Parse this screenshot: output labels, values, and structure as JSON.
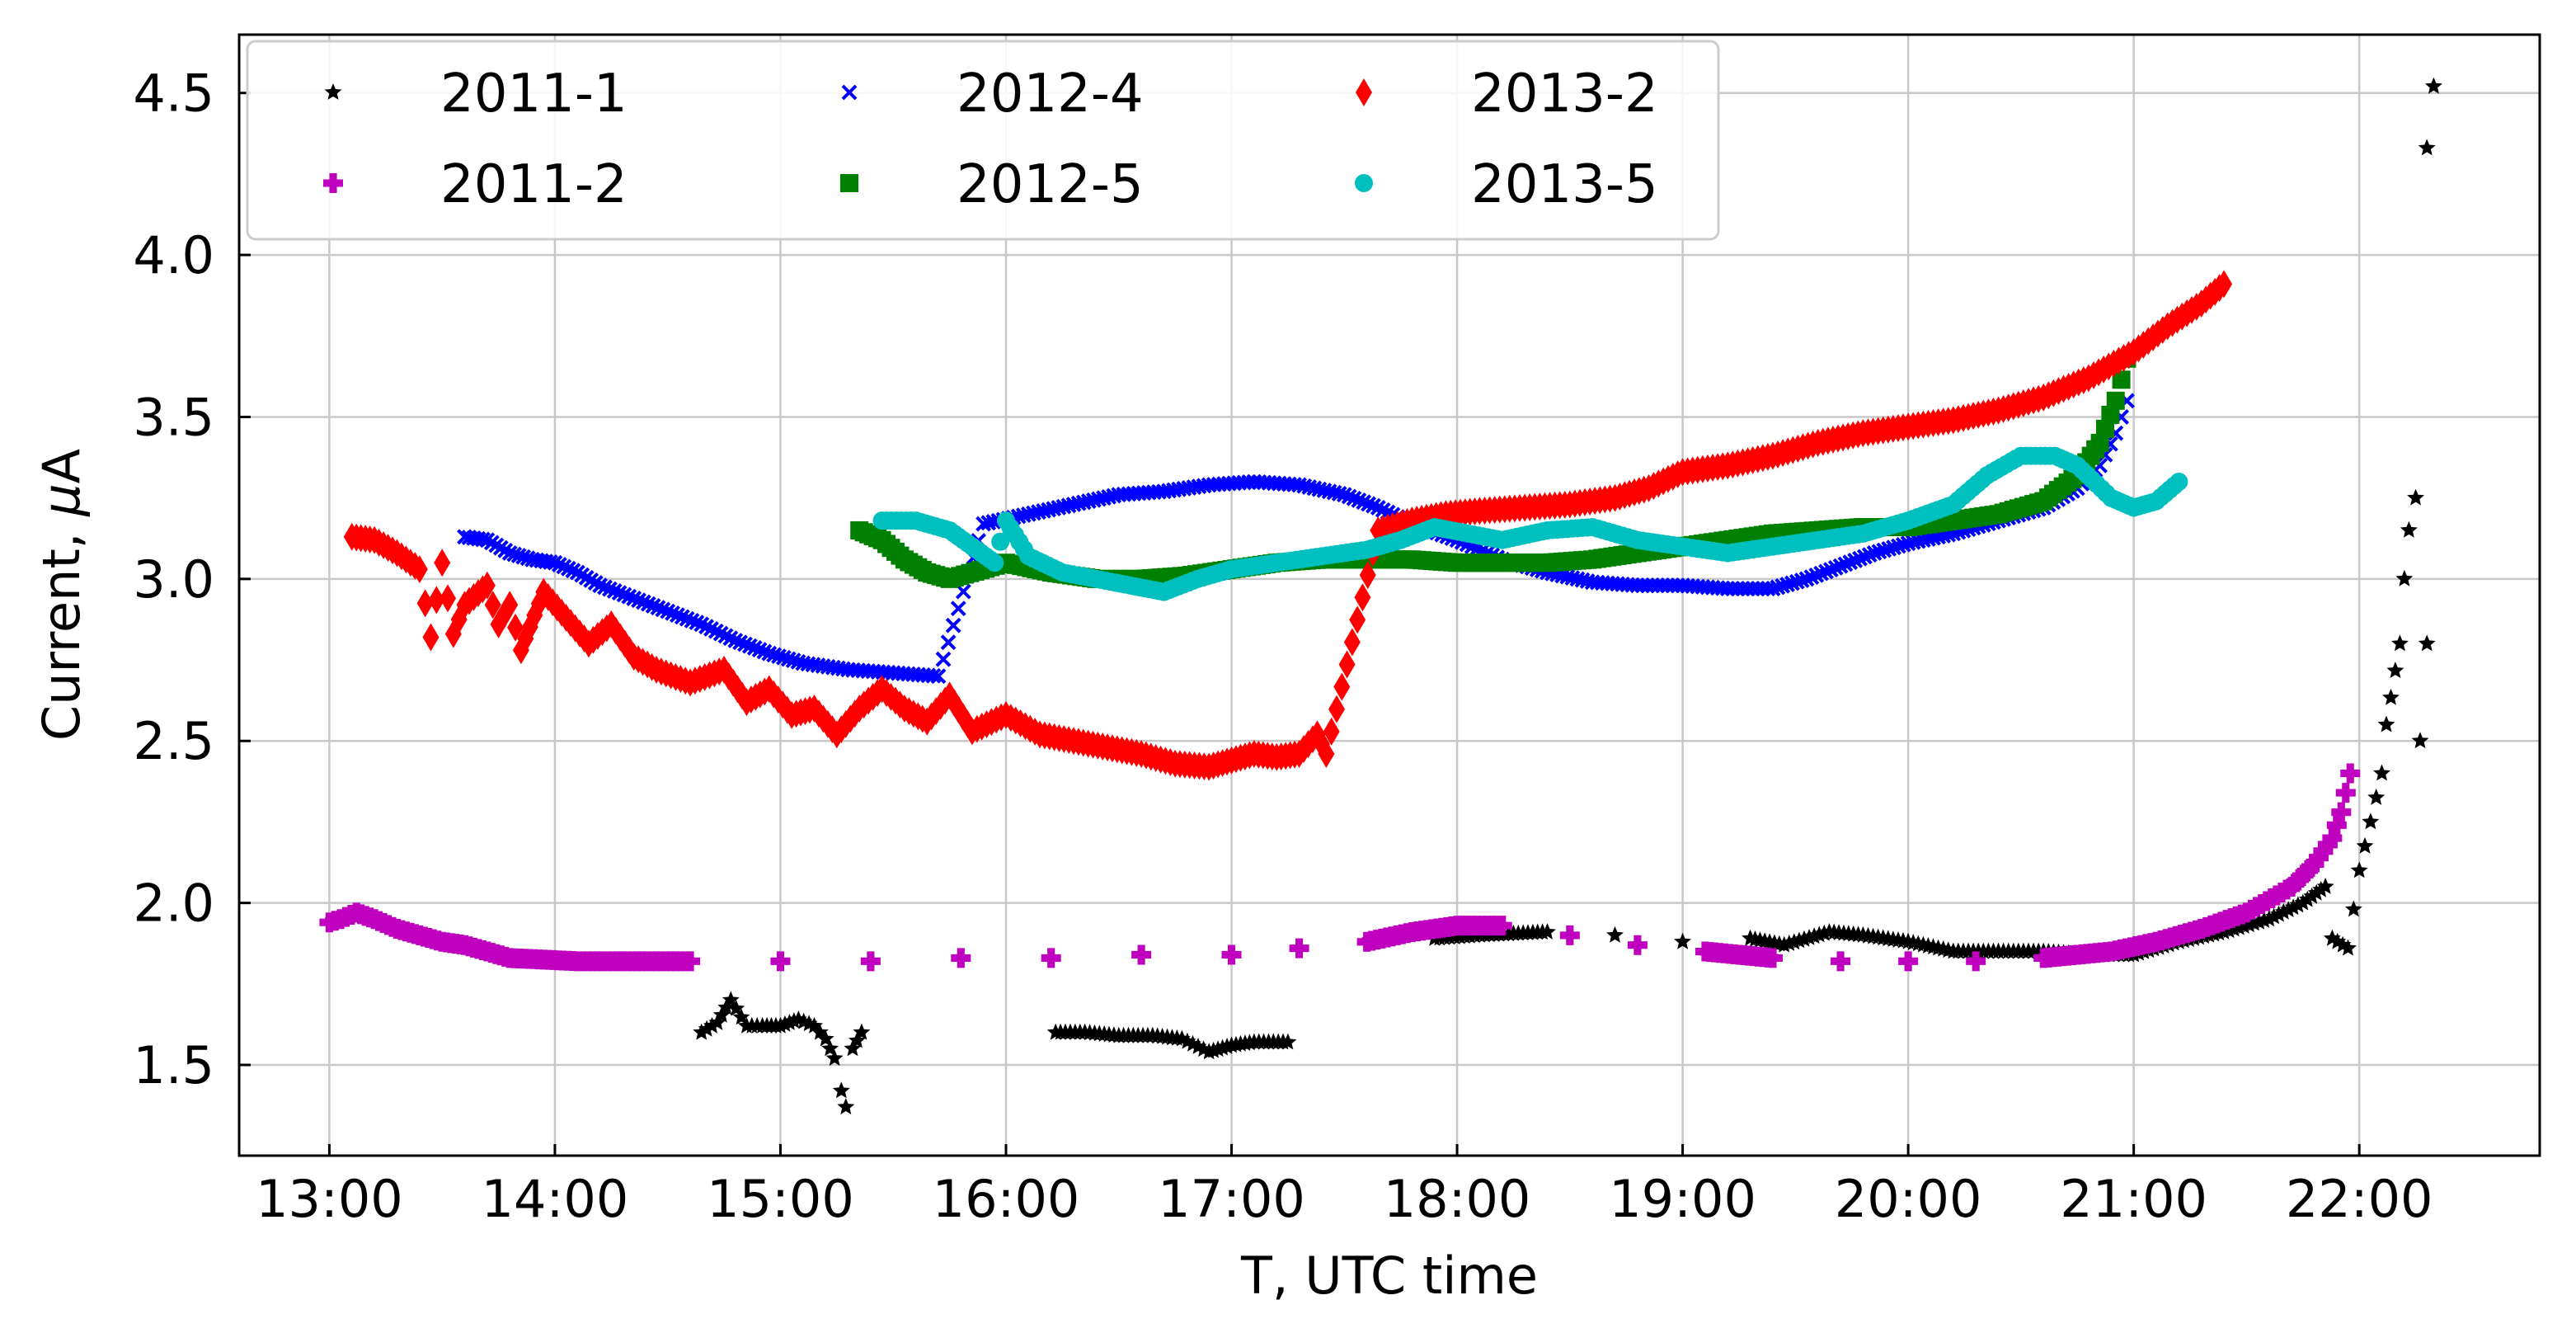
{
  "chart_data": {
    "type": "scatter",
    "title": "",
    "xlabel": "T, UTC time",
    "ylabel_main": "Current, ",
    "ylabel_unit": "μA",
    "xlim": [
      12.6,
      22.8
    ],
    "ylim": [
      1.22,
      4.68
    ],
    "x_ticks": [
      13,
      14,
      15,
      16,
      17,
      18,
      19,
      20,
      21,
      22
    ],
    "x_tick_labels": [
      "13:00",
      "14:00",
      "15:00",
      "16:00",
      "17:00",
      "18:00",
      "19:00",
      "20:00",
      "21:00",
      "22:00"
    ],
    "y_ticks": [
      1.5,
      2.0,
      2.5,
      3.0,
      3.5,
      4.0,
      4.5
    ],
    "y_tick_labels": [
      "1.5",
      "2.0",
      "2.5",
      "3.0",
      "3.5",
      "4.0",
      "4.5"
    ],
    "grid": true,
    "legend_position": "top-left",
    "legend_columns": 3,
    "series": [
      {
        "name": "2011-1",
        "color": "#000000",
        "marker": "star",
        "points": [
          [
            14.65,
            1.6
          ],
          [
            14.72,
            1.63
          ],
          [
            14.78,
            1.7
          ],
          [
            14.85,
            1.62
          ],
          [
            14.92,
            1.62
          ],
          [
            15.0,
            1.62
          ],
          [
            15.08,
            1.64
          ],
          [
            15.15,
            1.62
          ],
          [
            15.2,
            1.58
          ],
          [
            15.24,
            1.52
          ],
          [
            15.27,
            1.42
          ],
          [
            15.29,
            1.37
          ],
          [
            15.32,
            1.55
          ],
          [
            15.36,
            1.6
          ],
          [
            16.22,
            1.6
          ],
          [
            16.35,
            1.6
          ],
          [
            16.5,
            1.59
          ],
          [
            16.65,
            1.59
          ],
          [
            16.78,
            1.58
          ],
          [
            16.9,
            1.54
          ],
          [
            17.0,
            1.56
          ],
          [
            17.1,
            1.57
          ],
          [
            17.25,
            1.57
          ],
          [
            17.9,
            1.89
          ],
          [
            18.1,
            1.9
          ],
          [
            18.4,
            1.91
          ],
          [
            18.7,
            1.9
          ],
          [
            19.0,
            1.88
          ],
          [
            19.3,
            1.89
          ],
          [
            19.45,
            1.87
          ],
          [
            19.65,
            1.91
          ],
          [
            19.8,
            1.9
          ],
          [
            20.0,
            1.88
          ],
          [
            20.2,
            1.85
          ],
          [
            20.4,
            1.85
          ],
          [
            20.6,
            1.85
          ],
          [
            20.8,
            1.84
          ],
          [
            21.0,
            1.84
          ],
          [
            21.2,
            1.88
          ],
          [
            21.4,
            1.91
          ],
          [
            21.6,
            1.95
          ],
          [
            21.75,
            2.0
          ],
          [
            21.85,
            2.05
          ],
          [
            21.88,
            1.89
          ],
          [
            21.95,
            1.86
          ],
          [
            22.0,
            2.1
          ],
          [
            22.05,
            2.25
          ],
          [
            22.1,
            2.4
          ],
          [
            22.12,
            2.55
          ],
          [
            22.18,
            2.8
          ],
          [
            22.2,
            3.0
          ],
          [
            22.22,
            3.15
          ],
          [
            22.25,
            3.25
          ],
          [
            22.27,
            2.5
          ],
          [
            22.3,
            2.8
          ],
          [
            22.3,
            4.33
          ],
          [
            22.33,
            4.52
          ]
        ]
      },
      {
        "name": "2011-2",
        "color": "#bf00bf",
        "marker": "plus",
        "points": [
          [
            13.0,
            1.94
          ],
          [
            13.05,
            1.95
          ],
          [
            13.12,
            1.97
          ],
          [
            13.2,
            1.95
          ],
          [
            13.3,
            1.92
          ],
          [
            13.4,
            1.9
          ],
          [
            13.5,
            1.88
          ],
          [
            13.6,
            1.87
          ],
          [
            13.7,
            1.85
          ],
          [
            13.8,
            1.83
          ],
          [
            14.1,
            1.82
          ],
          [
            14.3,
            1.82
          ],
          [
            14.6,
            1.82
          ],
          [
            15.0,
            1.82
          ],
          [
            15.4,
            1.82
          ],
          [
            15.8,
            1.83
          ],
          [
            16.2,
            1.83
          ],
          [
            16.6,
            1.84
          ],
          [
            17.0,
            1.84
          ],
          [
            17.3,
            1.86
          ],
          [
            17.6,
            1.88
          ],
          [
            17.8,
            1.91
          ],
          [
            18.0,
            1.93
          ],
          [
            18.2,
            1.93
          ],
          [
            18.5,
            1.9
          ],
          [
            18.8,
            1.87
          ],
          [
            19.1,
            1.85
          ],
          [
            19.4,
            1.83
          ],
          [
            19.7,
            1.82
          ],
          [
            20.0,
            1.82
          ],
          [
            20.3,
            1.82
          ],
          [
            20.6,
            1.83
          ],
          [
            20.9,
            1.85
          ],
          [
            21.1,
            1.88
          ],
          [
            21.3,
            1.92
          ],
          [
            21.5,
            1.97
          ],
          [
            21.7,
            2.05
          ],
          [
            21.8,
            2.12
          ],
          [
            21.88,
            2.2
          ],
          [
            21.92,
            2.28
          ],
          [
            21.96,
            2.4
          ]
        ]
      },
      {
        "name": "2012-4",
        "color": "#0000ff",
        "marker": "x",
        "points": [
          [
            13.6,
            3.13
          ],
          [
            13.7,
            3.12
          ],
          [
            13.8,
            3.08
          ],
          [
            13.9,
            3.06
          ],
          [
            14.0,
            3.05
          ],
          [
            14.1,
            3.02
          ],
          [
            14.2,
            2.98
          ],
          [
            14.35,
            2.94
          ],
          [
            14.5,
            2.9
          ],
          [
            14.65,
            2.86
          ],
          [
            14.8,
            2.81
          ],
          [
            14.95,
            2.77
          ],
          [
            15.1,
            2.74
          ],
          [
            15.3,
            2.72
          ],
          [
            15.5,
            2.71
          ],
          [
            15.7,
            2.7
          ],
          [
            15.9,
            3.17
          ],
          [
            16.1,
            3.2
          ],
          [
            16.3,
            3.23
          ],
          [
            16.5,
            3.26
          ],
          [
            16.7,
            3.27
          ],
          [
            16.9,
            3.29
          ],
          [
            17.1,
            3.3
          ],
          [
            17.3,
            3.29
          ],
          [
            17.5,
            3.26
          ],
          [
            17.65,
            3.22
          ],
          [
            17.8,
            3.17
          ],
          [
            18.0,
            3.12
          ],
          [
            18.2,
            3.06
          ],
          [
            18.4,
            3.02
          ],
          [
            18.6,
            2.99
          ],
          [
            18.8,
            2.98
          ],
          [
            19.0,
            2.98
          ],
          [
            19.2,
            2.97
          ],
          [
            19.4,
            2.97
          ],
          [
            19.55,
            3.0
          ],
          [
            19.7,
            3.04
          ],
          [
            19.85,
            3.08
          ],
          [
            20.0,
            3.11
          ],
          [
            20.2,
            3.14
          ],
          [
            20.4,
            3.18
          ],
          [
            20.6,
            3.22
          ],
          [
            20.75,
            3.28
          ],
          [
            20.85,
            3.35
          ],
          [
            20.92,
            3.45
          ],
          [
            20.97,
            3.55
          ]
        ]
      },
      {
        "name": "2012-5",
        "color": "#008000",
        "marker": "square",
        "points": [
          [
            15.35,
            3.15
          ],
          [
            15.45,
            3.12
          ],
          [
            15.55,
            3.06
          ],
          [
            15.65,
            3.02
          ],
          [
            15.75,
            3.0
          ],
          [
            16.0,
            3.05
          ],
          [
            16.2,
            3.02
          ],
          [
            16.4,
            3.0
          ],
          [
            16.6,
            3.0
          ],
          [
            16.8,
            3.01
          ],
          [
            17.0,
            3.03
          ],
          [
            17.2,
            3.05
          ],
          [
            17.4,
            3.06
          ],
          [
            17.6,
            3.06
          ],
          [
            17.8,
            3.06
          ],
          [
            18.0,
            3.05
          ],
          [
            18.2,
            3.05
          ],
          [
            18.4,
            3.05
          ],
          [
            18.6,
            3.06
          ],
          [
            18.8,
            3.08
          ],
          [
            19.0,
            3.1
          ],
          [
            19.2,
            3.12
          ],
          [
            19.4,
            3.14
          ],
          [
            19.6,
            3.15
          ],
          [
            19.8,
            3.16
          ],
          [
            20.0,
            3.16
          ],
          [
            20.2,
            3.18
          ],
          [
            20.4,
            3.2
          ],
          [
            20.6,
            3.24
          ],
          [
            20.75,
            3.32
          ],
          [
            20.85,
            3.42
          ],
          [
            20.92,
            3.55
          ],
          [
            20.97,
            3.68
          ]
        ]
      },
      {
        "name": "2013-2",
        "color": "#ff0000",
        "marker": "diamond",
        "points": [
          [
            13.1,
            3.13
          ],
          [
            13.2,
            3.12
          ],
          [
            13.3,
            3.08
          ],
          [
            13.4,
            3.03
          ],
          [
            13.45,
            2.82
          ],
          [
            13.5,
            3.05
          ],
          [
            13.55,
            2.83
          ],
          [
            13.6,
            2.92
          ],
          [
            13.7,
            2.98
          ],
          [
            13.75,
            2.86
          ],
          [
            13.8,
            2.92
          ],
          [
            13.85,
            2.78
          ],
          [
            13.95,
            2.96
          ],
          [
            14.05,
            2.88
          ],
          [
            14.15,
            2.8
          ],
          [
            14.25,
            2.86
          ],
          [
            14.35,
            2.76
          ],
          [
            14.45,
            2.72
          ],
          [
            14.6,
            2.68
          ],
          [
            14.75,
            2.72
          ],
          [
            14.85,
            2.62
          ],
          [
            14.95,
            2.66
          ],
          [
            15.05,
            2.58
          ],
          [
            15.15,
            2.6
          ],
          [
            15.25,
            2.52
          ],
          [
            15.35,
            2.6
          ],
          [
            15.45,
            2.66
          ],
          [
            15.55,
            2.6
          ],
          [
            15.65,
            2.56
          ],
          [
            15.75,
            2.64
          ],
          [
            15.85,
            2.53
          ],
          [
            16.0,
            2.58
          ],
          [
            16.15,
            2.52
          ],
          [
            16.3,
            2.5
          ],
          [
            16.45,
            2.48
          ],
          [
            16.6,
            2.46
          ],
          [
            16.75,
            2.43
          ],
          [
            16.9,
            2.42
          ],
          [
            17.0,
            2.44
          ],
          [
            17.1,
            2.46
          ],
          [
            17.2,
            2.45
          ],
          [
            17.3,
            2.46
          ],
          [
            17.38,
            2.52
          ],
          [
            17.42,
            2.46
          ],
          [
            17.65,
            3.15
          ],
          [
            17.8,
            3.18
          ],
          [
            17.95,
            3.2
          ],
          [
            18.1,
            3.21
          ],
          [
            18.3,
            3.22
          ],
          [
            18.5,
            3.23
          ],
          [
            18.7,
            3.25
          ],
          [
            18.85,
            3.28
          ],
          [
            19.0,
            3.33
          ],
          [
            19.2,
            3.35
          ],
          [
            19.4,
            3.38
          ],
          [
            19.6,
            3.42
          ],
          [
            19.8,
            3.45
          ],
          [
            20.0,
            3.47
          ],
          [
            20.2,
            3.49
          ],
          [
            20.4,
            3.52
          ],
          [
            20.6,
            3.56
          ],
          [
            20.8,
            3.62
          ],
          [
            21.0,
            3.7
          ],
          [
            21.15,
            3.78
          ],
          [
            21.3,
            3.85
          ],
          [
            21.4,
            3.91
          ]
        ]
      },
      {
        "name": "2013-5",
        "color": "#00bfbf",
        "marker": "circle",
        "points": [
          [
            15.45,
            3.18
          ],
          [
            15.6,
            3.18
          ],
          [
            15.75,
            3.15
          ],
          [
            15.85,
            3.1
          ],
          [
            15.95,
            3.05
          ],
          [
            16.0,
            3.18
          ],
          [
            16.1,
            3.07
          ],
          [
            16.25,
            3.02
          ],
          [
            16.4,
            3.0
          ],
          [
            16.55,
            2.98
          ],
          [
            16.7,
            2.96
          ],
          [
            16.85,
            3.0
          ],
          [
            17.0,
            3.03
          ],
          [
            17.2,
            3.05
          ],
          [
            17.4,
            3.07
          ],
          [
            17.6,
            3.09
          ],
          [
            17.75,
            3.12
          ],
          [
            17.9,
            3.16
          ],
          [
            18.05,
            3.14
          ],
          [
            18.2,
            3.12
          ],
          [
            18.4,
            3.15
          ],
          [
            18.6,
            3.16
          ],
          [
            18.8,
            3.12
          ],
          [
            19.0,
            3.1
          ],
          [
            19.2,
            3.08
          ],
          [
            19.4,
            3.1
          ],
          [
            19.6,
            3.12
          ],
          [
            19.8,
            3.14
          ],
          [
            20.0,
            3.18
          ],
          [
            20.2,
            3.23
          ],
          [
            20.35,
            3.32
          ],
          [
            20.5,
            3.38
          ],
          [
            20.65,
            3.38
          ],
          [
            20.75,
            3.35
          ],
          [
            20.9,
            3.25
          ],
          [
            21.0,
            3.22
          ],
          [
            21.1,
            3.24
          ],
          [
            21.2,
            3.3
          ]
        ]
      }
    ]
  }
}
